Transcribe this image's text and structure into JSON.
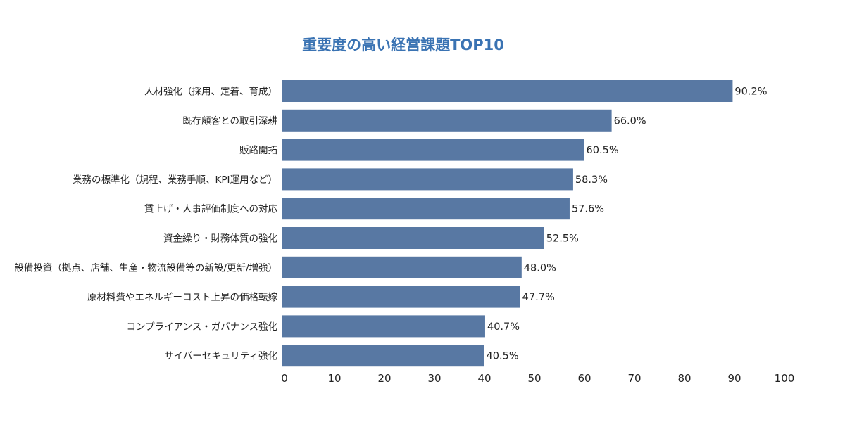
{
  "chart_data": {
    "type": "bar",
    "orientation": "horizontal",
    "title": "重要度の高い経営課題TOP10",
    "categories": [
      "人材強化（採用、定着、育成）",
      "既存顧客との取引深耕",
      "販路開拓",
      "業務の標準化（規程、業務手順、KPI運用など）",
      "賃上げ・人事評価制度への対応",
      "資金繰り・財務体質の強化",
      "設備投資（拠点、店舗、生産・物流設備等の新設/更新/増強）",
      "原材料費やエネルギーコスト上昇の価格転嫁",
      "コンプライアンス・ガバナンス強化",
      "サイバーセキュリティ強化"
    ],
    "values": [
      90.2,
      66.0,
      60.5,
      58.3,
      57.6,
      52.5,
      48.0,
      47.7,
      40.7,
      40.5
    ],
    "value_labels": [
      "90.2%",
      "66.0%",
      "60.5%",
      "58.3%",
      "57.6%",
      "52.5%",
      "48.0%",
      "47.7%",
      "40.7%",
      "40.5%"
    ],
    "xticks": [
      "0",
      "10",
      "20",
      "30",
      "40",
      "50",
      "60",
      "70",
      "80",
      "90",
      "100"
    ],
    "xlim": [
      0,
      100
    ],
    "grid": false,
    "legend": "none",
    "bar_color": "#5878a3",
    "title_color": "#3a73b3"
  }
}
